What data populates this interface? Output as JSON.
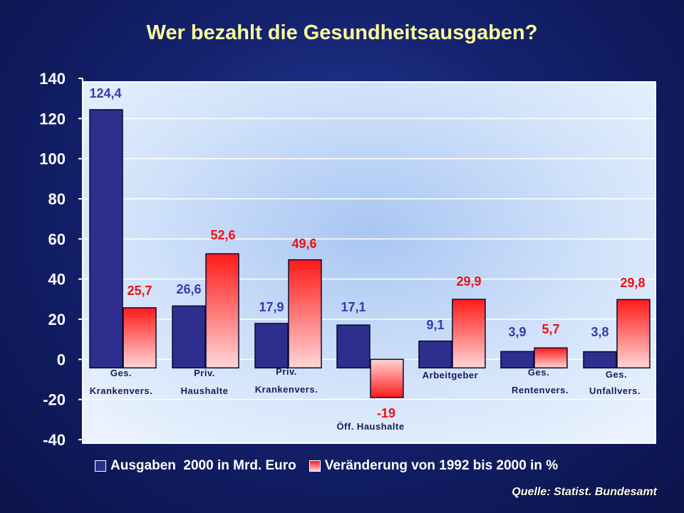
{
  "title": "Wer bezahlt die Gesundheitsausgaben?",
  "source": "Quelle: Statist. Bundesamt",
  "legend": {
    "series_a": "Ausgaben  2000 in Mrd. Euro",
    "series_b": "Veränderung von 1992 bis 2000 in %"
  },
  "colors": {
    "series_a": "#2e2e8f",
    "series_b_top": "#ff1a1a",
    "series_b_bottom": "#ffd6d6",
    "title": "#ffff99"
  },
  "chart_data": {
    "type": "bar",
    "title": "Wer bezahlt die Gesundheitsausgaben?",
    "ylim": [
      -40,
      140
    ],
    "yticks": [
      "140",
      "120",
      "100",
      "80",
      "60",
      "40",
      "20",
      "0",
      "-20",
      "-40"
    ],
    "grid": true,
    "legend_position": "bottom",
    "categories": [
      [
        "Ges.",
        "Krankenvers."
      ],
      [
        "Priv.",
        "Haushalte"
      ],
      [
        "Priv.",
        "Krankenvers."
      ],
      [
        "Öff. Haushalte"
      ],
      [
        "Arbeitgeber"
      ],
      [
        "Ges.",
        "Rentenvers."
      ],
      [
        "Ges.",
        "Unfallvers."
      ]
    ],
    "series": [
      {
        "name": "Ausgaben  2000 in Mrd. Euro",
        "values": [
          124.4,
          26.6,
          17.9,
          17.1,
          9.1,
          3.9,
          3.8
        ],
        "labels": [
          "124,4",
          "26,6",
          "17,9",
          "17,1",
          "9,1",
          "3,9",
          "3,8"
        ]
      },
      {
        "name": "Veränderung von 1992 bis 2000 in %",
        "values": [
          25.7,
          52.6,
          49.6,
          -19,
          29.9,
          5.7,
          29.8
        ],
        "labels": [
          "25,7",
          "52,6",
          "49,6",
          "-19",
          "29,9",
          "5,7",
          "29,8"
        ]
      }
    ]
  }
}
